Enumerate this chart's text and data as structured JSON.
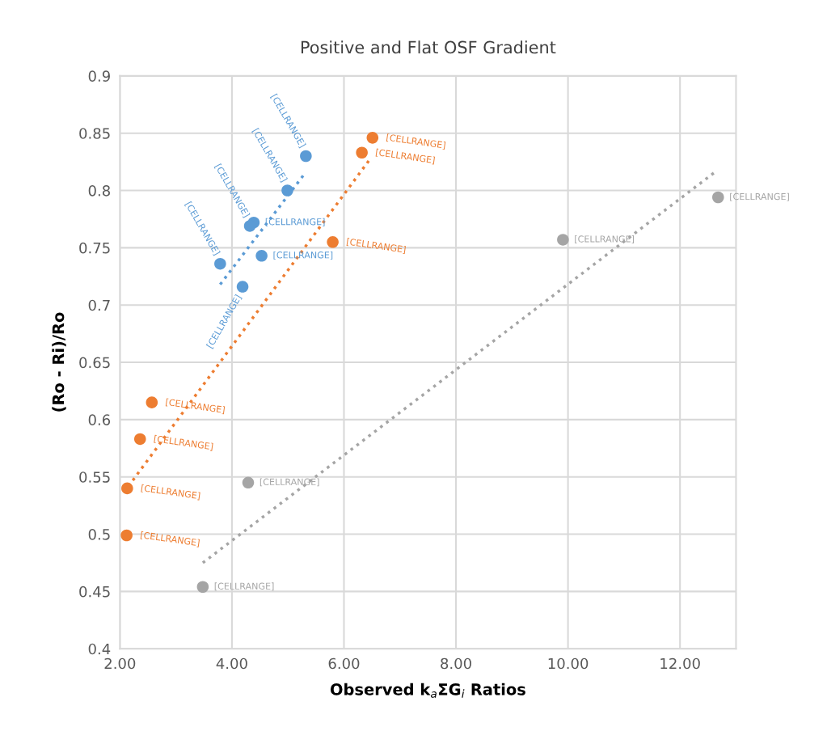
{
  "chart_data": {
    "type": "scatter",
    "title": "Positive and Flat OSF Gradient",
    "xlabel": "Observed k$_{a}$ΣG$_{i}$ Ratios",
    "ylabel": "(Ro - Ri)/Ro",
    "xlim": [
      2,
      13
    ],
    "xticks": [
      {
        "value": 2,
        "label": "2.00"
      },
      {
        "value": 4,
        "label": "4.00"
      },
      {
        "value": 6,
        "label": "6.00"
      },
      {
        "value": 8,
        "label": "8.00"
      },
      {
        "value": 10,
        "label": "10.00"
      },
      {
        "value": 12,
        "label": "12.00"
      }
    ],
    "ylim": [
      0.4,
      0.9
    ],
    "yticks": [
      0.4,
      0.45,
      0.5,
      0.55,
      0.6,
      0.65,
      0.7,
      0.75,
      0.8,
      0.85,
      0.9
    ],
    "grid": true,
    "marker": "circle",
    "series": [
      {
        "color": "#5b9bd5",
        "x": [
          5.32,
          4.99,
          4.39,
          4.32,
          4.53,
          3.79,
          4.19
        ],
        "values": [
          0.83,
          0.8,
          0.772,
          0.769,
          0.743,
          0.736,
          0.716
        ],
        "value_labels": [
          "[CELLRANGE]",
          "[CELLRANGE]",
          "[CELLRANGE]",
          "[CELLRANGE]",
          "[CELLRANGE]",
          "[CELLRANGE]",
          "[CELLRANGE]"
        ]
      },
      {
        "color": "#ed7d31",
        "x": [
          6.51,
          6.32,
          5.8,
          2.57,
          2.36,
          2.13,
          2.12
        ],
        "values": [
          0.846,
          0.833,
          0.755,
          0.615,
          0.583,
          0.54,
          0.499
        ],
        "value_labels": [
          "[CELLRANGE]",
          "[CELLRANGE]",
          "[CELLRANGE]",
          "[CELLRANGE]",
          "[CELLRANGE]",
          "[CELLRANGE]",
          "[CELLRANGE]"
        ]
      },
      {
        "color": "#a5a5a5",
        "x": [
          12.68,
          9.91,
          4.29,
          3.48
        ],
        "values": [
          0.794,
          0.757,
          0.545,
          0.454
        ],
        "value_labels": [
          "[CELLRANGE]",
          "[CELLRANGE]",
          "[CELLRANGE]",
          "[CELLRANGE]"
        ]
      },
      {
        "type": "line",
        "color": "#5b9bd5",
        "line_style": "dotted",
        "marker": "none",
        "x": [
          3.79,
          5.32
        ],
        "values": [
          0.718,
          0.816
        ]
      },
      {
        "type": "line",
        "color": "#ed7d31",
        "line_style": "dotted",
        "marker": "none",
        "x": [
          2.23,
          6.49
        ],
        "values": [
          0.547,
          0.829
        ]
      },
      {
        "type": "line",
        "color": "#a5a5a5",
        "line_style": "dotted",
        "marker": "none",
        "x": [
          3.48,
          12.65
        ],
        "values": [
          0.475,
          0.817
        ]
      }
    ]
  }
}
